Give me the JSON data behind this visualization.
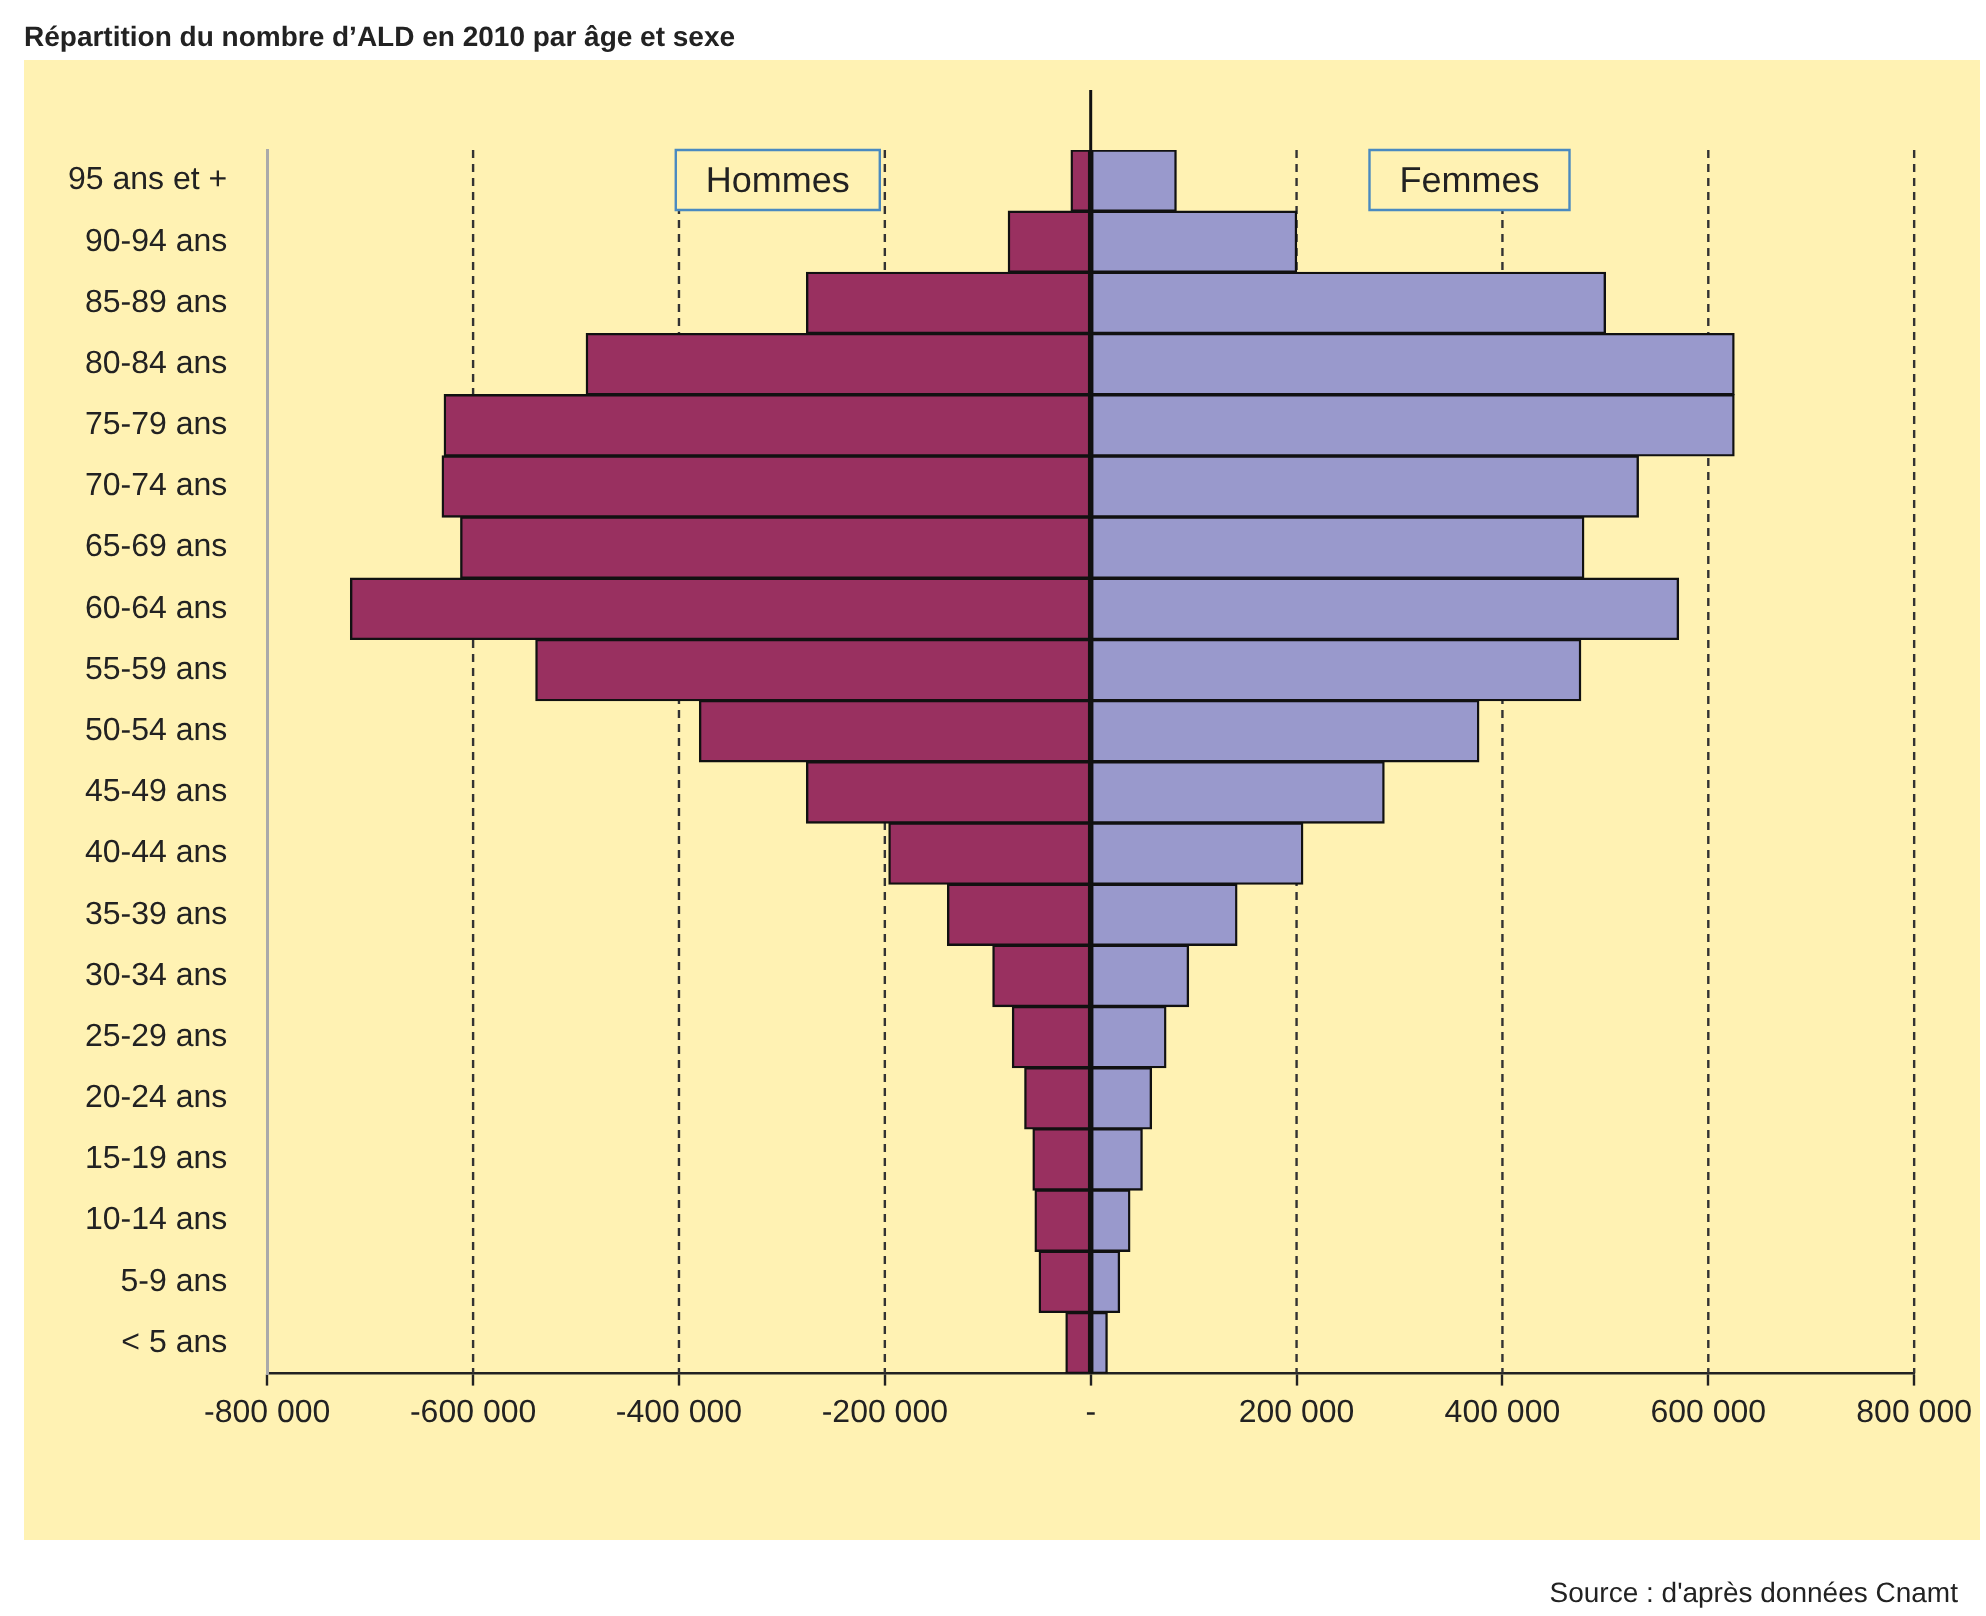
{
  "chart_data": {
    "type": "bar",
    "orientation": "horizontal",
    "stacked": true,
    "title": "Répartition du nombre d’ALD en 2010 par âge et sexe",
    "categories": [
      "95 ans et +",
      "90-94 ans",
      "85-89 ans",
      "80-84 ans",
      "75-79 ans",
      "70-74 ans",
      "65-69 ans",
      "60-64 ans",
      "55-59 ans",
      "50-54 ans",
      "45-49 ans",
      "40-44 ans",
      "35-39 ans",
      "30-34 ans",
      "25-29 ans",
      "20-24 ans",
      "15-19 ans",
      "10-14 ans",
      "5-9 ans",
      "< 5 ans"
    ],
    "series": [
      {
        "name": "Hommes",
        "color": "#993060",
        "values": [
          -19000,
          -80000,
          -276000,
          -490000,
          -628000,
          -630000,
          -612000,
          -719000,
          -539000,
          -380000,
          -276000,
          -196000,
          -139000,
          -95000,
          -76000,
          -64000,
          -56000,
          -54000,
          -50000,
          -24000
        ]
      },
      {
        "name": "Femmes",
        "color": "#9999cc",
        "values": [
          83000,
          200000,
          500000,
          625000,
          625000,
          532000,
          479000,
          571000,
          476000,
          377000,
          285000,
          206000,
          142000,
          95000,
          73000,
          59000,
          50000,
          38000,
          28000,
          16000
        ]
      }
    ],
    "xlim": [
      -800000,
      800000
    ],
    "xticks": [
      {
        "value": -800000,
        "label": "-800 000"
      },
      {
        "value": -600000,
        "label": "-600 000"
      },
      {
        "value": -400000,
        "label": "-400 000"
      },
      {
        "value": -200000,
        "label": "-200 000"
      },
      {
        "value": 0,
        "label": "-"
      },
      {
        "value": 200000,
        "label": "200 000"
      },
      {
        "value": 400000,
        "label": "400 000"
      },
      {
        "value": 600000,
        "label": "600 000"
      },
      {
        "value": 800000,
        "label": "800 000"
      }
    ],
    "grid": "x",
    "legend": false,
    "annotations": [
      "Source : d'après données Cnamt"
    ]
  }
}
